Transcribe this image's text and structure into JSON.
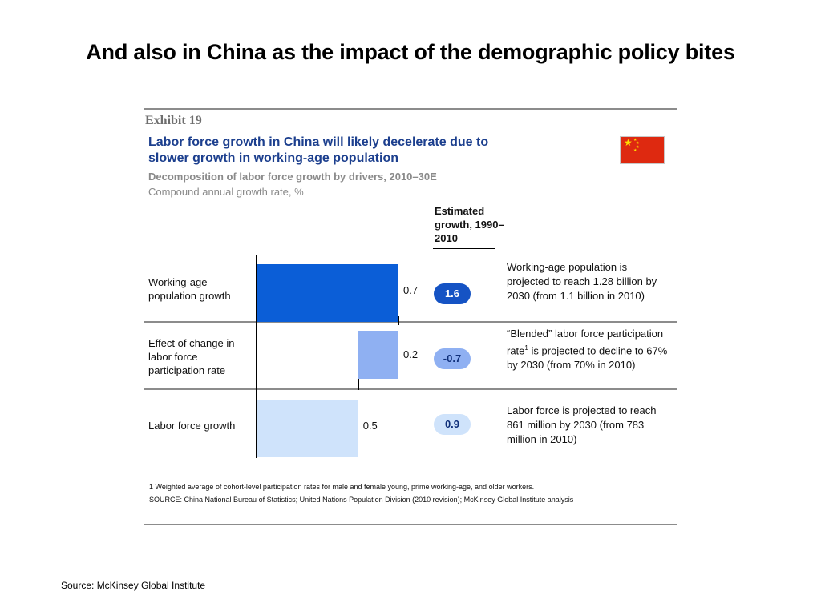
{
  "slide": {
    "title": "And also in China as the impact of the demographic policy bites",
    "source": "Source: McKinsey Global Institute"
  },
  "exhibit": {
    "label": "Exhibit 19",
    "title": "Labor force growth in China will likely decelerate due to slower growth in working-age population",
    "subtitle": "Decomposition of labor force growth by drivers, 2010–30E",
    "unit": "Compound annual growth rate, %",
    "estimated_header": "Estimated growth, 1990–2010",
    "footnote": "1  Weighted average of cohort-level participation rates for male and female young, prime working-age, and older workers.",
    "source_note": "SOURCE: China National Bureau of Statistics; United Nations Population Division (2010 revision); McKinsey Global Institute analysis"
  },
  "rows": [
    {
      "label": "Working-age population growth",
      "value_label": "0.7",
      "estimated": "1.6",
      "note_before": "Working-age population is projected to reach 1.28 billion by 2030 (from 1.1 billion in 2010)",
      "note_sup": "",
      "note_after": ""
    },
    {
      "label": "Effect of change in labor force participation rate",
      "value_label": "0.2",
      "estimated": "-0.7",
      "note_before": "“Blended” labor force participation rate",
      "note_sup": "1",
      "note_after": " is projected to decline to 67% by 2030 (from 70% in 2010)"
    },
    {
      "label": "Labor force growth",
      "value_label": "0.5",
      "estimated": "0.9",
      "note_before": "Labor force is projected to reach 861 million by 2030 (from 783 million in 2010)",
      "note_sup": "",
      "note_after": ""
    }
  ],
  "colors": {
    "bar_working_age": "#0b5ed7",
    "bar_participation": "#8fb0f2",
    "bar_labor_force": "#cfe3fb",
    "pill_dark": "#1553c4",
    "pill_mid": "#8fb0f2",
    "pill_light": "#cfe3fb",
    "title_blue": "#1c3f8e"
  },
  "chart_data": {
    "type": "bar",
    "categories": [
      "Working-age population growth",
      "Effect of change in labor force participation rate",
      "Labor force growth"
    ],
    "values": [
      0.7,
      -0.2,
      0.5
    ],
    "value_labels": [
      "0.7",
      "0.2",
      "0.5"
    ],
    "estimated_growth_1990_2010": [
      1.6,
      -0.7,
      0.9
    ],
    "title": "Labor force growth in China will likely decelerate due to slower growth in working-age population",
    "subtitle": "Decomposition of labor force growth by drivers, 2010–30E",
    "ylabel": "Compound annual growth rate, %",
    "xlim": [
      0,
      0.7
    ],
    "waterfall": true
  }
}
